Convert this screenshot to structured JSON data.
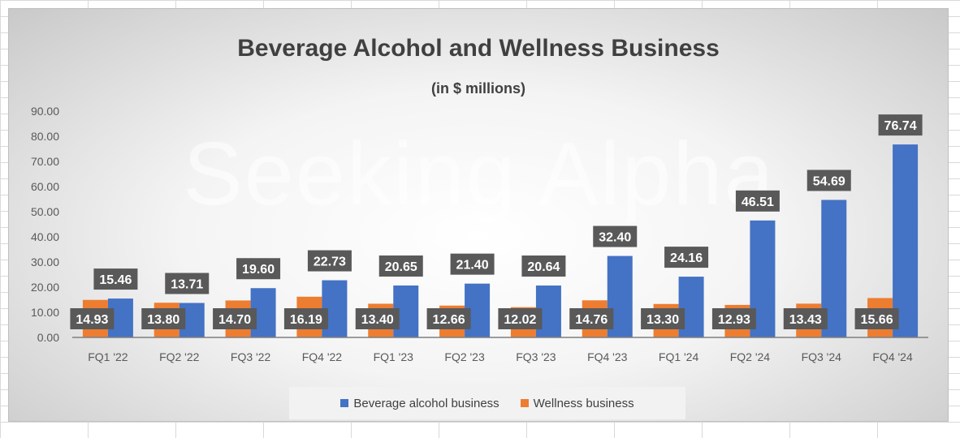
{
  "chart_data": {
    "type": "bar",
    "title": "Beverage Alcohol and Wellness Business",
    "subtitle": "(in $ millions)",
    "watermark": "Seeking Alpha",
    "categories": [
      "FQ1 '22",
      "FQ2 '22",
      "FQ3 '22",
      "FQ4 '22",
      "FQ1 '23",
      "FQ2 '23",
      "FQ3 '23",
      "FQ4 '23",
      "FQ1 '24",
      "FQ2 '24",
      "FQ3 '24",
      "FQ4 '24"
    ],
    "series": [
      {
        "name": "Wellness business",
        "color": "#ED7D31",
        "values": [
          14.93,
          13.8,
          14.7,
          16.19,
          13.4,
          12.66,
          12.02,
          14.76,
          13.3,
          12.93,
          13.43,
          15.66
        ],
        "labels": [
          "14.93",
          "13.80",
          "14.70",
          "16.19",
          "13.40",
          "12.66",
          "12.02",
          "14.76",
          "13.30",
          "12.93",
          "13.43",
          "15.66"
        ]
      },
      {
        "name": "Beverage alcohol business",
        "color": "#4472C4",
        "values": [
          15.46,
          13.71,
          19.6,
          22.73,
          20.65,
          21.4,
          20.64,
          32.4,
          24.16,
          46.51,
          54.69,
          76.74
        ],
        "labels": [
          "15.46",
          "13.71",
          "19.60",
          "22.73",
          "20.65",
          "21.40",
          "20.64",
          "32.40",
          "24.16",
          "46.51",
          "54.69",
          "76.74"
        ]
      }
    ],
    "yticks": [
      "0.00",
      "10.00",
      "20.00",
      "30.00",
      "40.00",
      "50.00",
      "60.00",
      "70.00",
      "80.00",
      "90.00"
    ],
    "ylim": [
      0,
      90
    ],
    "legend": {
      "position": "bottom",
      "items": [
        {
          "label": "Beverage alcohol business",
          "color": "#4472C4"
        },
        {
          "label": "Wellness business",
          "color": "#ED7D31"
        }
      ]
    }
  }
}
